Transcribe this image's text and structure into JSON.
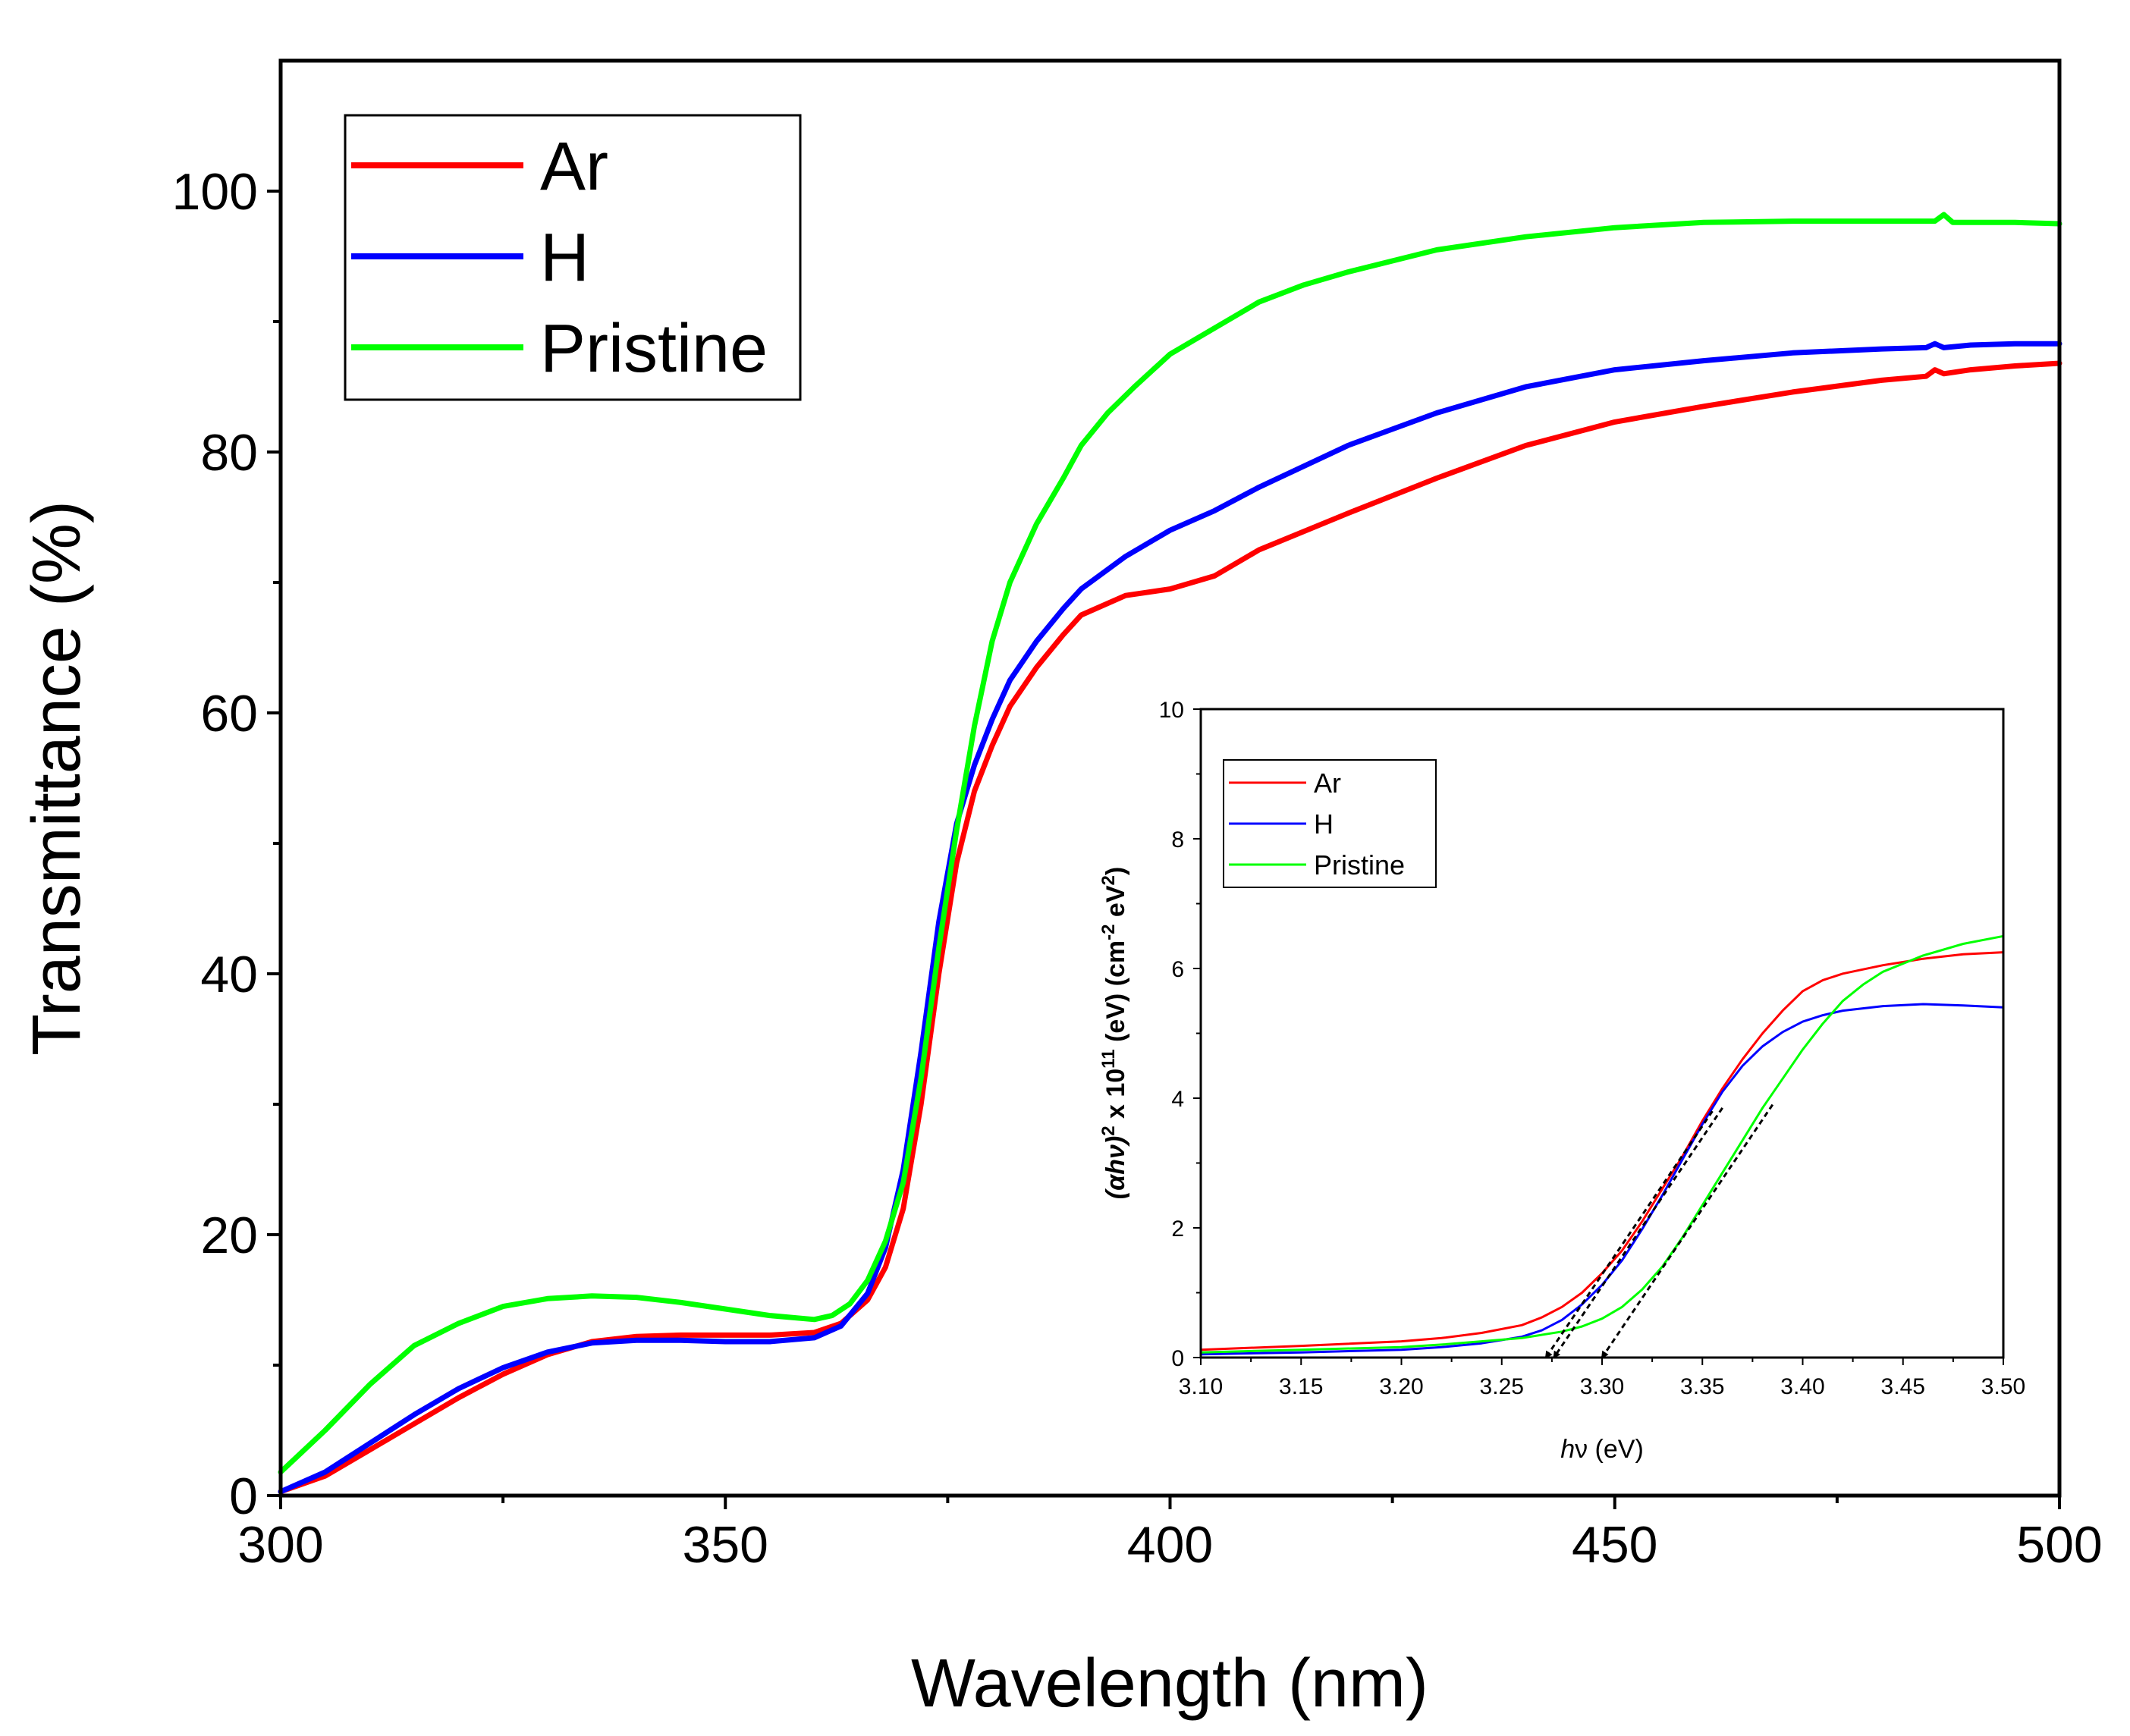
{
  "chart_data": [
    {
      "type": "line",
      "name": "main",
      "xlabel": "Wavelength (nm)",
      "ylabel": "Transmittance (%)",
      "xlim": [
        300,
        500
      ],
      "ylim": [
        0,
        110
      ],
      "xticks": [
        300,
        350,
        400,
        450,
        500
      ],
      "yticks": [
        0,
        20,
        40,
        60,
        80,
        100
      ],
      "xtick_labels": [
        "300",
        "350",
        "400",
        "450",
        "500"
      ],
      "ytick_labels": [
        "0",
        "20",
        "40",
        "60",
        "80",
        "100"
      ],
      "legend_position": "top-left",
      "series": [
        {
          "name": "Ar",
          "color": "#ff0000",
          "x": [
            300,
            305,
            310,
            315,
            320,
            325,
            330,
            335,
            340,
            345,
            350,
            355,
            360,
            363,
            366,
            368,
            370,
            372,
            374,
            376,
            378,
            380,
            382,
            385,
            388,
            390,
            395,
            400,
            405,
            410,
            420,
            430,
            440,
            450,
            460,
            470,
            480,
            485,
            486,
            487,
            490,
            495,
            500
          ],
          "y": [
            0.3,
            1.5,
            3.5,
            5.5,
            7.5,
            9.3,
            10.8,
            11.8,
            12.2,
            12.3,
            12.3,
            12.3,
            12.5,
            13.2,
            15,
            17.5,
            22,
            30,
            40,
            48.5,
            54,
            57.5,
            60.5,
            63.5,
            66,
            67.5,
            69,
            69.5,
            70.5,
            72.5,
            75.3,
            78,
            80.5,
            82.3,
            83.5,
            84.6,
            85.5,
            85.8,
            86.3,
            86,
            86.3,
            86.6,
            86.8
          ]
        },
        {
          "name": "H",
          "color": "#0000ff",
          "x": [
            300,
            305,
            310,
            315,
            320,
            325,
            330,
            335,
            340,
            345,
            350,
            355,
            360,
            363,
            366,
            368,
            370,
            372,
            374,
            376,
            378,
            380,
            382,
            385,
            388,
            390,
            395,
            400,
            405,
            410,
            420,
            430,
            440,
            450,
            460,
            470,
            480,
            485,
            486,
            487,
            490,
            495,
            500
          ],
          "y": [
            0.3,
            1.8,
            4,
            6.2,
            8.2,
            9.8,
            11,
            11.7,
            11.9,
            11.9,
            11.8,
            11.8,
            12.1,
            13,
            15.5,
            19,
            25,
            34,
            44,
            51.5,
            56,
            59.5,
            62.5,
            65.5,
            68,
            69.5,
            72,
            74,
            75.5,
            77.3,
            80.5,
            83,
            85,
            86.3,
            87,
            87.6,
            87.9,
            88,
            88.3,
            88,
            88.2,
            88.3,
            88.3
          ]
        },
        {
          "name": "Pristine",
          "color": "#00ff00",
          "x": [
            300,
            305,
            310,
            315,
            320,
            325,
            330,
            335,
            340,
            345,
            350,
            355,
            360,
            362,
            364,
            366,
            368,
            370,
            372,
            374,
            376,
            378,
            380,
            382,
            385,
            388,
            390,
            393,
            396,
            400,
            405,
            410,
            415,
            420,
            430,
            440,
            450,
            460,
            470,
            480,
            486,
            487,
            488,
            490,
            495,
            500
          ],
          "y": [
            1.8,
            5,
            8.5,
            11.5,
            13.2,
            14.5,
            15.1,
            15.3,
            15.2,
            14.8,
            14.3,
            13.8,
            13.5,
            13.8,
            14.7,
            16.5,
            19.5,
            24,
            32,
            42,
            51,
            59,
            65.5,
            70,
            74.5,
            78,
            80.5,
            83,
            85,
            87.5,
            89.5,
            91.5,
            92.8,
            93.8,
            95.5,
            96.5,
            97.2,
            97.6,
            97.7,
            97.7,
            97.7,
            98.2,
            97.6,
            97.6,
            97.6,
            97.5
          ]
        }
      ]
    },
    {
      "type": "line",
      "name": "inset",
      "xlabel_prefix": "h",
      "xlabel_symbol": "ν",
      "xlabel_suffix": " (eV)",
      "ylabel_parts": [
        "(α",
        "h",
        "ν)",
        "2",
        " x 10",
        "11",
        " (eV) (cm",
        "-2",
        " eV",
        "2",
        ")"
      ],
      "xlim": [
        3.1,
        3.5
      ],
      "ylim": [
        0,
        10
      ],
      "xticks": [
        3.1,
        3.15,
        3.2,
        3.25,
        3.3,
        3.35,
        3.4,
        3.45,
        3.5
      ],
      "yticks": [
        0,
        2,
        4,
        6,
        8,
        10
      ],
      "xtick_labels": [
        "3.10",
        "3.15",
        "3.20",
        "3.25",
        "3.30",
        "3.35",
        "3.40",
        "3.45",
        "3.50"
      ],
      "ytick_labels": [
        "0",
        "2",
        "4",
        "6",
        "8",
        "10"
      ],
      "legend_position": "top-left",
      "series": [
        {
          "name": "Ar",
          "color": "#ff0000",
          "x": [
            3.1,
            3.15,
            3.2,
            3.22,
            3.24,
            3.26,
            3.27,
            3.28,
            3.29,
            3.3,
            3.31,
            3.32,
            3.33,
            3.34,
            3.35,
            3.36,
            3.37,
            3.38,
            3.39,
            3.4,
            3.41,
            3.42,
            3.44,
            3.46,
            3.48,
            3.5
          ],
          "y": [
            0.12,
            0.18,
            0.25,
            0.3,
            0.38,
            0.5,
            0.62,
            0.78,
            1.0,
            1.3,
            1.65,
            2.1,
            2.6,
            3.1,
            3.65,
            4.15,
            4.6,
            5.0,
            5.35,
            5.65,
            5.82,
            5.92,
            6.05,
            6.15,
            6.22,
            6.25
          ]
        },
        {
          "name": "H",
          "color": "#0000ff",
          "x": [
            3.1,
            3.15,
            3.2,
            3.22,
            3.24,
            3.26,
            3.27,
            3.28,
            3.29,
            3.3,
            3.31,
            3.32,
            3.33,
            3.34,
            3.35,
            3.36,
            3.37,
            3.38,
            3.39,
            3.4,
            3.41,
            3.42,
            3.44,
            3.46,
            3.48,
            3.5
          ],
          "y": [
            0.05,
            0.08,
            0.12,
            0.16,
            0.22,
            0.32,
            0.42,
            0.58,
            0.82,
            1.12,
            1.5,
            1.98,
            2.5,
            3.05,
            3.6,
            4.1,
            4.5,
            4.8,
            5.02,
            5.18,
            5.28,
            5.35,
            5.42,
            5.45,
            5.43,
            5.4
          ]
        },
        {
          "name": "Pristine",
          "color": "#00ff00",
          "x": [
            3.1,
            3.15,
            3.2,
            3.22,
            3.24,
            3.26,
            3.28,
            3.29,
            3.3,
            3.31,
            3.32,
            3.33,
            3.34,
            3.35,
            3.36,
            3.37,
            3.38,
            3.39,
            3.4,
            3.41,
            3.42,
            3.43,
            3.44,
            3.46,
            3.48,
            3.5
          ],
          "y": [
            0.08,
            0.12,
            0.16,
            0.2,
            0.25,
            0.3,
            0.4,
            0.48,
            0.6,
            0.78,
            1.05,
            1.4,
            1.85,
            2.35,
            2.85,
            3.35,
            3.85,
            4.3,
            4.75,
            5.15,
            5.5,
            5.75,
            5.95,
            6.2,
            6.38,
            6.5
          ]
        }
      ],
      "tangent_lines": [
        {
          "name": "Ar",
          "from": [
            3.355,
            3.8
          ],
          "to": [
            3.272,
            0
          ]
        },
        {
          "name": "H",
          "from": [
            3.36,
            3.85
          ],
          "to": [
            3.276,
            0
          ]
        },
        {
          "name": "Pristine",
          "from": [
            3.385,
            3.9
          ],
          "to": [
            3.3,
            0
          ]
        }
      ]
    }
  ]
}
